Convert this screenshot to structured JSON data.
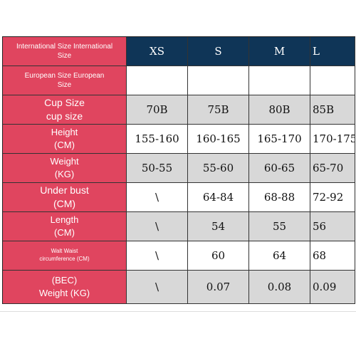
{
  "header": {
    "label": [
      "International Size International",
      "Size"
    ],
    "sizes": [
      "XS",
      "S",
      "M",
      "L"
    ]
  },
  "rows": [
    {
      "label": [
        "European Size European",
        "Size"
      ],
      "values": [
        "",
        "",
        "",
        ""
      ]
    },
    {
      "label": [
        "Cup Size",
        "cup size"
      ],
      "values": [
        "70B",
        "75B",
        "80B",
        "85B"
      ]
    },
    {
      "label": [
        "Height",
        "(CM)"
      ],
      "values": [
        "155-160",
        "160-165",
        "165-170",
        "170-175"
      ]
    },
    {
      "label": [
        "Weight",
        "(KG)"
      ],
      "values": [
        "50-55",
        "55-60",
        "60-65",
        "65-70"
      ]
    },
    {
      "label": [
        "Under bust",
        "(CM)"
      ],
      "values": [
        "\\",
        "64-84",
        "68-88",
        "72-92"
      ]
    },
    {
      "label": [
        "Length",
        "(CM)"
      ],
      "values": [
        "\\",
        "54",
        "55",
        "56"
      ]
    },
    {
      "label": [
        "Walt Waist",
        "circumference (CM)"
      ],
      "values": [
        "\\",
        "60",
        "64",
        "68"
      ]
    },
    {
      "label": [
        "(BEC)",
        "Weight (KG)"
      ],
      "values": [
        "\\",
        "0.07",
        "0.08",
        "0.09"
      ]
    }
  ],
  "colors": {
    "label_bg": "#e0455f",
    "header_bg": "#0f3557",
    "gray_cell": "#d8d8d8"
  }
}
